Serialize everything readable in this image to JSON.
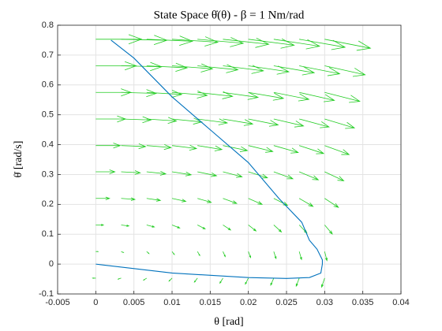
{
  "chart_data": {
    "type": "line",
    "title": "State Space θ̇(θ) - β = 1 Nm/rad",
    "xlabel": "θ [rad]",
    "ylabel": "θ̇ [rad/s]",
    "x": [
      0.002,
      0.005,
      0.01,
      0.015,
      0.02,
      0.024,
      0.027,
      0.028,
      0.029,
      0.0297,
      0.0297,
      0.0295,
      0.028,
      0.025,
      0.02,
      0.01,
      0
    ],
    "series": [
      {
        "color": "#0072bd",
        "values": [
          0.75,
          0.69,
          0.56,
          0.45,
          0.34,
          0.22,
          0.14,
          0.08,
          0.05,
          0.014,
          0.0,
          -0.03,
          -0.045,
          -0.048,
          -0.045,
          -0.03,
          0
        ]
      }
    ],
    "quiver": {
      "color": "#22cc22",
      "x": [
        0,
        0.00333,
        0.00667,
        0.01,
        0.01333,
        0.01667,
        0.02,
        0.02333,
        0.02667,
        0.03
      ],
      "y": [
        -0.047,
        0.042,
        0.131,
        0.22,
        0.309,
        0.397,
        0.486,
        0.575,
        0.664,
        0.753
      ],
      "u": [
        -0.0004,
        0.0003,
        0.001,
        0.0018,
        0.0025,
        0.0032,
        0.0039,
        0.0046,
        0.0053,
        0.006
      ],
      "v": [
        0,
        -0.0033,
        -0.0067,
        -0.01,
        -0.0133,
        -0.0167,
        -0.02,
        -0.0233,
        -0.0267,
        -0.03
      ]
    },
    "xlim": [
      -0.005,
      0.04
    ],
    "ylim": [
      -0.1,
      0.8
    ],
    "xticks": [
      -0.005,
      0,
      0.005,
      0.01,
      0.015,
      0.02,
      0.025,
      0.03,
      0.035,
      0.04
    ],
    "yticks": [
      -0.1,
      0,
      0.1,
      0.2,
      0.3,
      0.4,
      0.5,
      0.6,
      0.7,
      0.8
    ],
    "grid": true
  }
}
